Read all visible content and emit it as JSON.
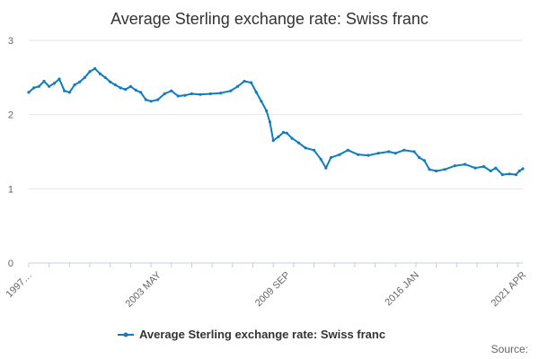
{
  "chart_data": {
    "type": "line",
    "title": "Average Sterling exchange rate: Swiss franc",
    "xlabel": "",
    "ylabel": "",
    "ylim": [
      0,
      3
    ],
    "yticks": [
      0,
      1,
      2,
      3
    ],
    "xlim": [
      "1997",
      "2021-04"
    ],
    "xtick_labels": [
      "1997…",
      "2003 MAY",
      "2009 SEP",
      "2016 JAN",
      "2021 APR"
    ],
    "legend_position": "bottom",
    "grid": "horizontal",
    "series": [
      {
        "name": "Average Sterling exchange rate: Swiss franc",
        "color": "#0f7dbf",
        "points": [
          [
            "1997-01",
            2.3
          ],
          [
            "1997-04",
            2.36
          ],
          [
            "1997-07",
            2.38
          ],
          [
            "1997-10",
            2.45
          ],
          [
            "1998-01",
            2.38
          ],
          [
            "1998-04",
            2.42
          ],
          [
            "1998-07",
            2.48
          ],
          [
            "1998-10",
            2.32
          ],
          [
            "1999-01",
            2.3
          ],
          [
            "1999-04",
            2.4
          ],
          [
            "1999-07",
            2.44
          ],
          [
            "1999-10",
            2.5
          ],
          [
            "2000-01",
            2.58
          ],
          [
            "2000-04",
            2.62
          ],
          [
            "2000-07",
            2.55
          ],
          [
            "2000-10",
            2.5
          ],
          [
            "2001-01",
            2.44
          ],
          [
            "2001-04",
            2.4
          ],
          [
            "2001-07",
            2.36
          ],
          [
            "2001-10",
            2.34
          ],
          [
            "2002-01",
            2.38
          ],
          [
            "2002-04",
            2.33
          ],
          [
            "2002-07",
            2.3
          ],
          [
            "2002-10",
            2.2
          ],
          [
            "2003-01",
            2.18
          ],
          [
            "2003-05",
            2.2
          ],
          [
            "2003-09",
            2.28
          ],
          [
            "2004-01",
            2.32
          ],
          [
            "2004-05",
            2.25
          ],
          [
            "2004-09",
            2.26
          ],
          [
            "2005-01",
            2.28
          ],
          [
            "2005-06",
            2.27
          ],
          [
            "2005-12",
            2.28
          ],
          [
            "2006-06",
            2.29
          ],
          [
            "2006-12",
            2.32
          ],
          [
            "2007-04",
            2.38
          ],
          [
            "2007-08",
            2.45
          ],
          [
            "2007-12",
            2.43
          ],
          [
            "2008-03",
            2.3
          ],
          [
            "2008-06",
            2.18
          ],
          [
            "2008-09",
            2.05
          ],
          [
            "2008-11",
            1.9
          ],
          [
            "2009-01",
            1.65
          ],
          [
            "2009-04",
            1.7
          ],
          [
            "2009-07",
            1.76
          ],
          [
            "2009-09",
            1.75
          ],
          [
            "2009-12",
            1.68
          ],
          [
            "2010-04",
            1.62
          ],
          [
            "2010-08",
            1.55
          ],
          [
            "2011-01",
            1.52
          ],
          [
            "2011-05",
            1.4
          ],
          [
            "2011-08",
            1.28
          ],
          [
            "2011-11",
            1.42
          ],
          [
            "2012-04",
            1.46
          ],
          [
            "2012-09",
            1.52
          ],
          [
            "2013-03",
            1.46
          ],
          [
            "2013-09",
            1.45
          ],
          [
            "2014-03",
            1.48
          ],
          [
            "2014-09",
            1.5
          ],
          [
            "2015-01",
            1.48
          ],
          [
            "2015-06",
            1.52
          ],
          [
            "2015-12",
            1.5
          ],
          [
            "2016-03",
            1.42
          ],
          [
            "2016-06",
            1.38
          ],
          [
            "2016-09",
            1.26
          ],
          [
            "2017-01",
            1.24
          ],
          [
            "2017-06",
            1.26
          ],
          [
            "2017-12",
            1.31
          ],
          [
            "2018-06",
            1.33
          ],
          [
            "2018-12",
            1.28
          ],
          [
            "2019-05",
            1.3
          ],
          [
            "2019-09",
            1.24
          ],
          [
            "2019-12",
            1.28
          ],
          [
            "2020-04",
            1.19
          ],
          [
            "2020-08",
            1.2
          ],
          [
            "2020-12",
            1.19
          ],
          [
            "2021-02",
            1.24
          ],
          [
            "2021-04",
            1.27
          ]
        ]
      }
    ],
    "source_label": "Source:"
  }
}
